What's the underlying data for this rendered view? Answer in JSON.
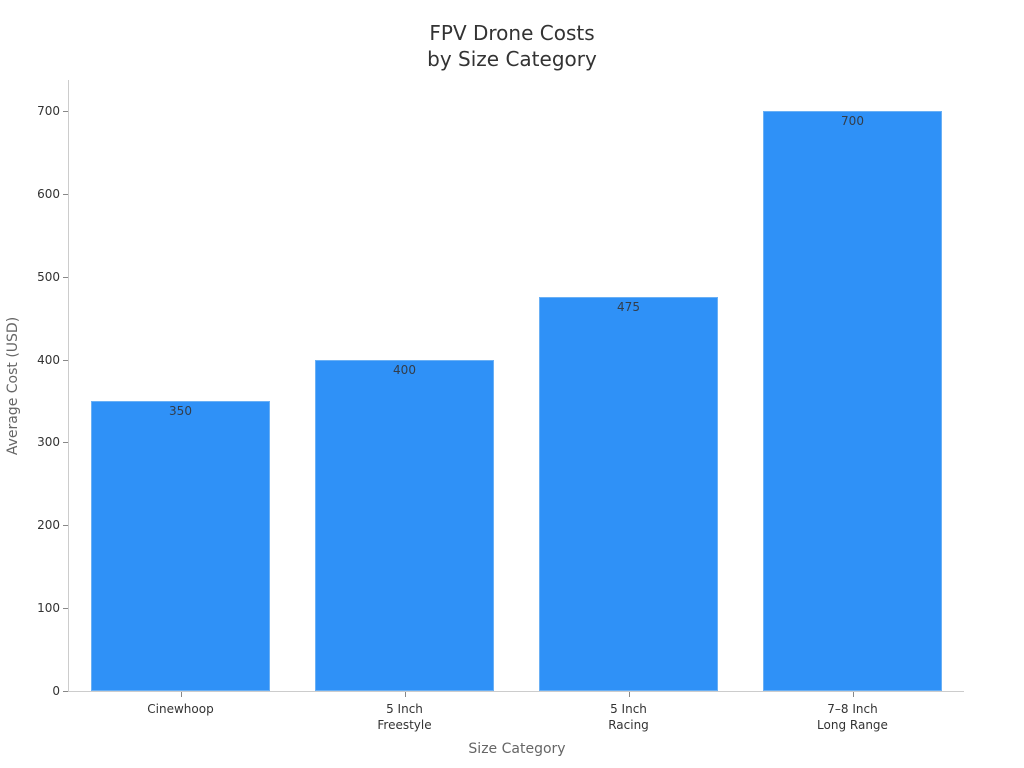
{
  "chart_data": {
    "type": "bar",
    "title": "FPV Drone Costs\nby Size Category",
    "title_lines": [
      "FPV Drone Costs",
      "by Size Category"
    ],
    "categories": [
      "Cinewhoop",
      "5 Inch\nFreestyle",
      "5 Inch\nRacing",
      "7–8 Inch\nLong Range"
    ],
    "category_lines": [
      [
        "Cinewhoop"
      ],
      [
        "5 Inch",
        "Freestyle"
      ],
      [
        "5 Inch",
        "Racing"
      ],
      [
        "7–8 Inch",
        "Long Range"
      ]
    ],
    "values": [
      350,
      400,
      475,
      700
    ],
    "data_labels": [
      "350",
      "400",
      "475",
      "700"
    ],
    "xlabel": "Size Category",
    "ylabel": "Average Cost (USD)",
    "ylim": [
      0,
      735
    ],
    "yticks": [
      0,
      100,
      200,
      300,
      400,
      500,
      600,
      700
    ],
    "ytick_labels": [
      "0",
      "100",
      "200",
      "300",
      "400",
      "500",
      "600",
      "700"
    ],
    "grid": false,
    "legend": null,
    "bar_color": "#2f91f7"
  }
}
